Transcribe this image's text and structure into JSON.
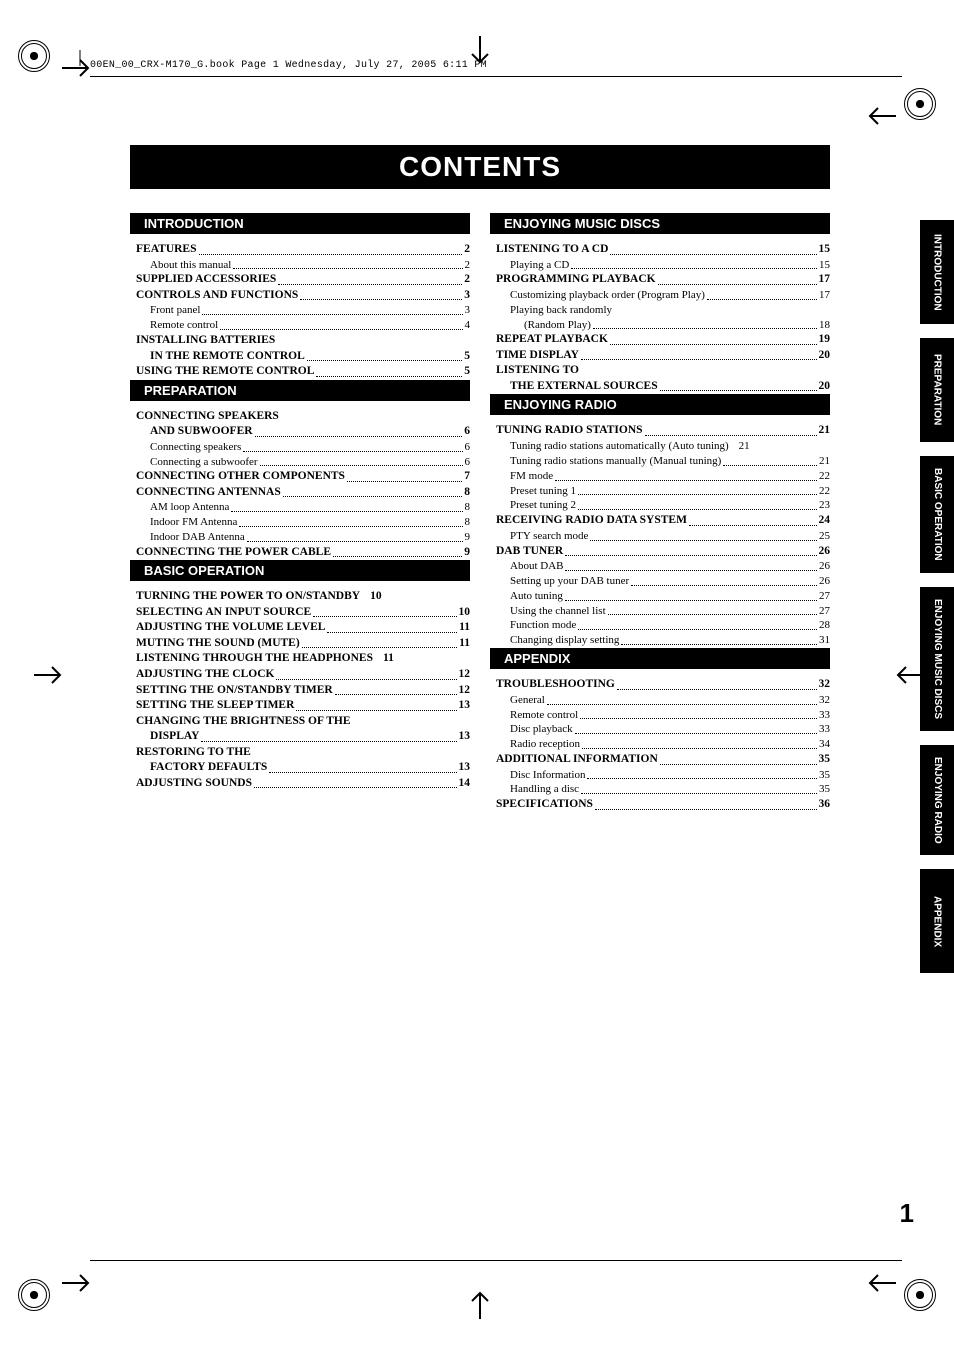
{
  "header_line": "00EN_00_CRX-M170_G.book  Page 1  Wednesday, July 27, 2005  6:11 PM",
  "title": "CONTENTS",
  "page_number": "1",
  "tabs": [
    "INTRODUCTION",
    "PREPARATION",
    "BASIC\nOPERATION",
    "ENJOYING\nMUSIC DISCS",
    "ENJOYING\nRADIO",
    "APPENDIX"
  ],
  "left": [
    {
      "header": "INTRODUCTION",
      "items": [
        {
          "t": "m",
          "label": "FEATURES",
          "page": "2"
        },
        {
          "t": "s",
          "label": "About this manual",
          "page": "2"
        },
        {
          "t": "m",
          "label": "SUPPLIED ACCESSORIES",
          "page": "2"
        },
        {
          "t": "m",
          "label": "CONTROLS AND FUNCTIONS",
          "page": "3"
        },
        {
          "t": "s",
          "label": "Front panel",
          "page": "3"
        },
        {
          "t": "s",
          "label": "Remote control",
          "page": "4"
        },
        {
          "t": "mw",
          "label": "INSTALLING BATTERIES"
        },
        {
          "t": "m",
          "label": "IN THE REMOTE CONTROL",
          "page": "5",
          "cont": true
        },
        {
          "t": "m",
          "label": "USING THE REMOTE CONTROL",
          "page": "5"
        }
      ]
    },
    {
      "header": "PREPARATION",
      "items": [
        {
          "t": "mw",
          "label": "CONNECTING SPEAKERS"
        },
        {
          "t": "m",
          "label": "AND SUBWOOFER",
          "page": "6",
          "cont": true
        },
        {
          "t": "s",
          "label": "Connecting speakers",
          "page": "6"
        },
        {
          "t": "s",
          "label": "Connecting a subwoofer",
          "page": "6"
        },
        {
          "t": "m",
          "label": "CONNECTING OTHER COMPONENTS",
          "page": "7"
        },
        {
          "t": "m",
          "label": "CONNECTING ANTENNAS",
          "page": "8"
        },
        {
          "t": "s",
          "label": "AM loop Antenna",
          "page": "8"
        },
        {
          "t": "s",
          "label": "Indoor FM Antenna",
          "page": "8"
        },
        {
          "t": "s",
          "label": "Indoor DAB Antenna",
          "page": "9"
        },
        {
          "t": "m",
          "label": "CONNECTING THE POWER CABLE",
          "page": "9"
        }
      ]
    },
    {
      "header": "BASIC OPERATION",
      "items": [
        {
          "t": "m",
          "label": "TURNING THE POWER TO ON/STANDBY",
          "page": "10",
          "tight": true
        },
        {
          "t": "m",
          "label": "SELECTING AN INPUT SOURCE",
          "page": "10"
        },
        {
          "t": "m",
          "label": "ADJUSTING THE VOLUME LEVEL",
          "page": "11"
        },
        {
          "t": "m",
          "label": "MUTING THE SOUND (MUTE)",
          "page": "11"
        },
        {
          "t": "m",
          "label": "LISTENING THROUGH THE HEADPHONES",
          "page": "11",
          "tight": true
        },
        {
          "t": "m",
          "label": "ADJUSTING THE CLOCK",
          "page": "12"
        },
        {
          "t": "m",
          "label": "SETTING THE  ON/STANDBY TIMER",
          "page": "12"
        },
        {
          "t": "m",
          "label": "SETTING THE SLEEP TIMER",
          "page": "13"
        },
        {
          "t": "mw",
          "label": "CHANGING THE BRIGHTNESS OF THE"
        },
        {
          "t": "m",
          "label": "DISPLAY",
          "page": "13",
          "cont": true
        },
        {
          "t": "mw",
          "label": "RESTORING TO THE"
        },
        {
          "t": "m",
          "label": "FACTORY DEFAULTS",
          "page": "13",
          "cont": true
        },
        {
          "t": "m",
          "label": "ADJUSTING SOUNDS",
          "page": "14"
        }
      ]
    }
  ],
  "right": [
    {
      "header": "ENJOYING MUSIC DISCS",
      "items": [
        {
          "t": "m",
          "label": "LISTENING TO A CD",
          "page": "15"
        },
        {
          "t": "s",
          "label": "Playing a CD",
          "page": "15"
        },
        {
          "t": "m",
          "label": "PROGRAMMING PLAYBACK",
          "page": "17"
        },
        {
          "t": "s",
          "label": "Customizing playback order (Program Play)",
          "page": "17"
        },
        {
          "t": "sw",
          "label": "Playing back randomly"
        },
        {
          "t": "s",
          "label": "(Random Play)",
          "page": "18",
          "cont": true
        },
        {
          "t": "m",
          "label": "REPEAT PLAYBACK",
          "page": "19"
        },
        {
          "t": "m",
          "label": "TIME DISPLAY",
          "page": "20"
        },
        {
          "t": "mw",
          "label": "LISTENING TO"
        },
        {
          "t": "m",
          "label": "THE EXTERNAL SOURCES",
          "page": "20",
          "cont": true
        }
      ]
    },
    {
      "header": "ENJOYING RADIO",
      "items": [
        {
          "t": "m",
          "label": "TUNING RADIO STATIONS",
          "page": "21"
        },
        {
          "t": "s",
          "label": "Tuning radio stations automatically (Auto tuning)",
          "page": "21",
          "tight": true
        },
        {
          "t": "s",
          "label": "Tuning radio stations manually (Manual tuning)",
          "page": "21"
        },
        {
          "t": "s",
          "label": "FM mode",
          "page": "22"
        },
        {
          "t": "s",
          "label": "Preset tuning 1",
          "page": "22"
        },
        {
          "t": "s",
          "label": "Preset tuning 2",
          "page": "23"
        },
        {
          "t": "m",
          "label": "RECEIVING RADIO DATA SYSTEM",
          "page": "24"
        },
        {
          "t": "s",
          "label": "PTY search mode",
          "page": "25"
        },
        {
          "t": "m",
          "label": "DAB TUNER",
          "page": "26"
        },
        {
          "t": "s",
          "label": "About DAB",
          "page": "26"
        },
        {
          "t": "s",
          "label": "Setting up your DAB tuner",
          "page": "26"
        },
        {
          "t": "s",
          "label": "Auto tuning",
          "page": "27"
        },
        {
          "t": "s",
          "label": "Using the channel list",
          "page": "27"
        },
        {
          "t": "s",
          "label": "Function mode",
          "page": "28"
        },
        {
          "t": "s",
          "label": "Changing display setting",
          "page": "31"
        }
      ]
    },
    {
      "header": "APPENDIX",
      "items": [
        {
          "t": "m",
          "label": "TROUBLESHOOTING",
          "page": "32"
        },
        {
          "t": "s",
          "label": "General",
          "page": "32"
        },
        {
          "t": "s",
          "label": "Remote control",
          "page": "33"
        },
        {
          "t": "s",
          "label": "Disc playback",
          "page": "33"
        },
        {
          "t": "s",
          "label": "Radio reception",
          "page": "34"
        },
        {
          "t": "m",
          "label": "ADDITIONAL INFORMATION",
          "page": "35"
        },
        {
          "t": "s",
          "label": "Disc Information",
          "page": "35"
        },
        {
          "t": "s",
          "label": "Handling a disc",
          "page": "35"
        },
        {
          "t": "m",
          "label": "SPECIFICATIONS",
          "page": "36"
        }
      ]
    }
  ],
  "colors": {
    "ink": "#000000",
    "paper": "#ffffff"
  }
}
